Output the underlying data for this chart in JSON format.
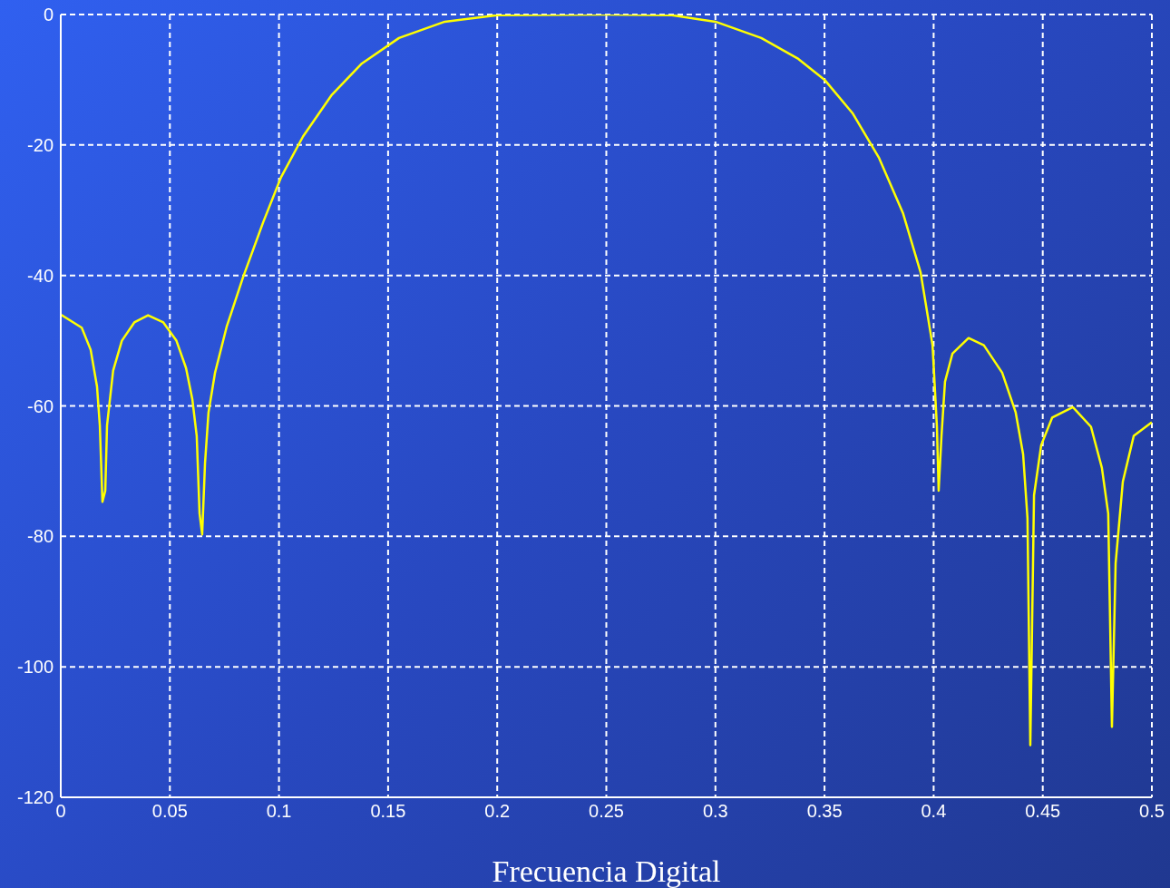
{
  "chart_data": {
    "type": "line",
    "xlabel": "Frecuencia Digital",
    "xlim": [
      0,
      0.5
    ],
    "xticks": [
      0,
      0.05,
      0.1,
      0.15,
      0.2,
      0.25,
      0.3,
      0.35,
      0.4,
      0.45,
      0.5
    ],
    "ylim": [
      -120,
      0
    ],
    "yticks": [
      -120,
      -100,
      -80,
      -60,
      -40,
      -20,
      0
    ],
    "grid": true,
    "marker": "none",
    "line_style": "solid",
    "series": [
      {
        "color": "#ffff00",
        "x": [
          0,
          0.0096,
          0.0137,
          0.0166,
          0.0179,
          0.0191,
          0.0204,
          0.0212,
          0.024,
          0.028,
          0.0337,
          0.04,
          0.047,
          0.053,
          0.0574,
          0.0603,
          0.0623,
          0.0636,
          0.0648,
          0.0661,
          0.0677,
          0.0707,
          0.076,
          0.0835,
          0.0927,
          0.101,
          0.111,
          0.124,
          0.138,
          0.155,
          0.176,
          0.2,
          0.25,
          0.28,
          0.3,
          0.321,
          0.338,
          0.35,
          0.363,
          0.375,
          0.386,
          0.394,
          0.3995,
          0.4015,
          0.4023,
          0.4036,
          0.4052,
          0.4086,
          0.416,
          0.423,
          0.4314,
          0.4376,
          0.441,
          0.443,
          0.4443,
          0.446,
          0.4493,
          0.4543,
          0.4638,
          0.4721,
          0.4771,
          0.48,
          0.4817,
          0.4834,
          0.4867,
          0.4917,
          0.5
        ],
        "values": [
          -46,
          -48,
          -51.4,
          -57,
          -63,
          -74.7,
          -73,
          -63,
          -54.6,
          -50,
          -47.2,
          -46.1,
          -47.2,
          -50,
          -54.2,
          -59,
          -64.6,
          -76.5,
          -79.7,
          -68.8,
          -61,
          -54.9,
          -47.9,
          -40.3,
          -31.9,
          -24.9,
          -18.7,
          -12.4,
          -7.5,
          -3.6,
          -1.1,
          -0.1,
          0,
          -0.1,
          -1.1,
          -3.6,
          -6.8,
          -10,
          -15.2,
          -22,
          -30.5,
          -39.5,
          -50.7,
          -63.2,
          -73,
          -64.6,
          -56.3,
          -52,
          -49.6,
          -50.7,
          -54.9,
          -61,
          -67.4,
          -77.2,
          -112,
          -73.7,
          -66,
          -61.8,
          -60.2,
          -63.2,
          -69.5,
          -76.5,
          -109.2,
          -84.1,
          -71.6,
          -64.6,
          -62.5
        ]
      }
    ]
  }
}
